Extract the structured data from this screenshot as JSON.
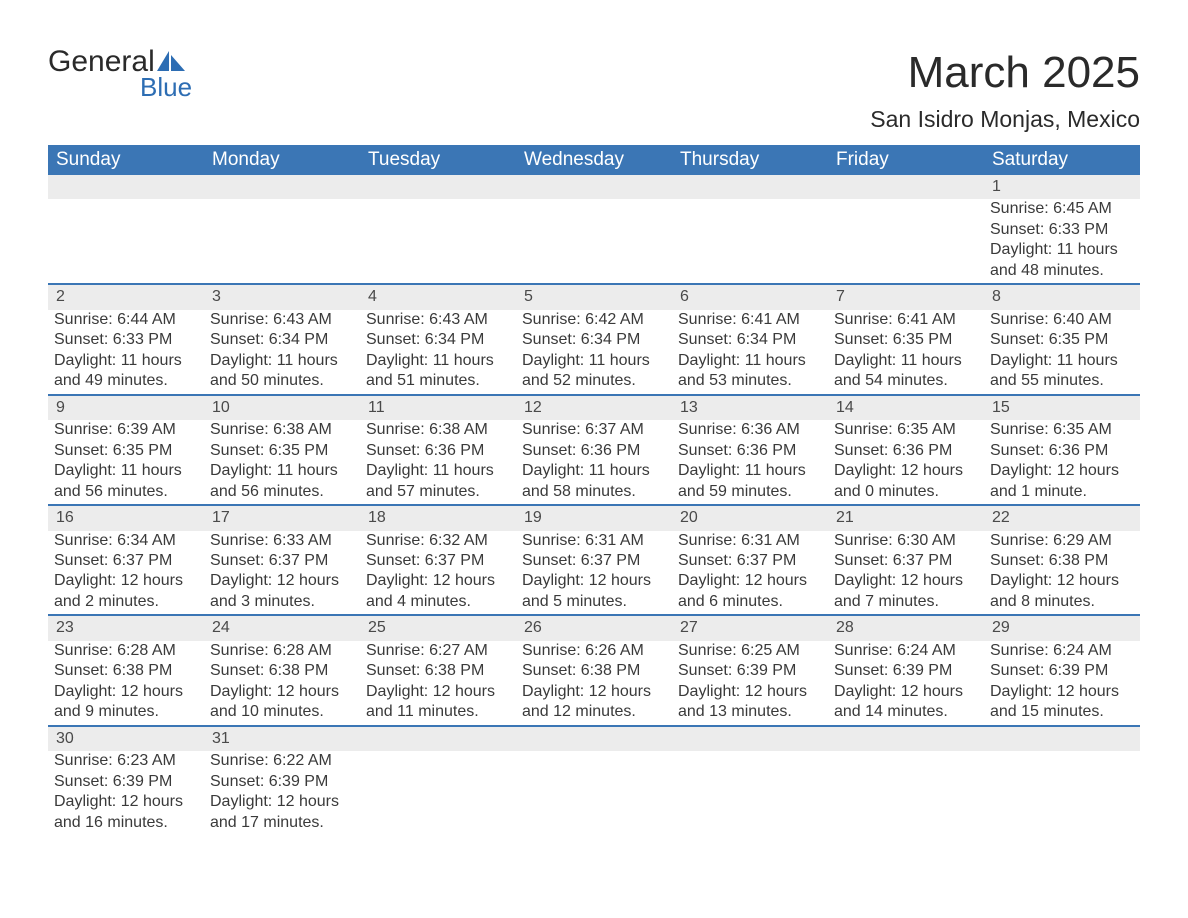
{
  "logo": {
    "general": "General",
    "blue": "Blue",
    "icon_color": "#2d6db3"
  },
  "title": "March 2025",
  "location": "San Isidro Monjas, Mexico",
  "columns": [
    "Sunday",
    "Monday",
    "Tuesday",
    "Wednesday",
    "Thursday",
    "Friday",
    "Saturday"
  ],
  "header_bg": "#3b76b5",
  "header_fg": "#ffffff",
  "strip_bg": "#ececec",
  "divider_color": "#3b76b5",
  "text_color": "#3a3a3a",
  "font_family": "Arial, Helvetica, sans-serif",
  "month_title_fontsize": 44,
  "location_fontsize": 23,
  "header_fontsize": 19,
  "body_fontsize": 16,
  "weeks": [
    {
      "days": [
        null,
        null,
        null,
        null,
        null,
        null,
        {
          "n": "1",
          "sunrise": "Sunrise: 6:45 AM",
          "sunset": "Sunset: 6:33 PM",
          "d1": "Daylight: 11 hours",
          "d2": "and 48 minutes."
        }
      ]
    },
    {
      "days": [
        {
          "n": "2",
          "sunrise": "Sunrise: 6:44 AM",
          "sunset": "Sunset: 6:33 PM",
          "d1": "Daylight: 11 hours",
          "d2": "and 49 minutes."
        },
        {
          "n": "3",
          "sunrise": "Sunrise: 6:43 AM",
          "sunset": "Sunset: 6:34 PM",
          "d1": "Daylight: 11 hours",
          "d2": "and 50 minutes."
        },
        {
          "n": "4",
          "sunrise": "Sunrise: 6:43 AM",
          "sunset": "Sunset: 6:34 PM",
          "d1": "Daylight: 11 hours",
          "d2": "and 51 minutes."
        },
        {
          "n": "5",
          "sunrise": "Sunrise: 6:42 AM",
          "sunset": "Sunset: 6:34 PM",
          "d1": "Daylight: 11 hours",
          "d2": "and 52 minutes."
        },
        {
          "n": "6",
          "sunrise": "Sunrise: 6:41 AM",
          "sunset": "Sunset: 6:34 PM",
          "d1": "Daylight: 11 hours",
          "d2": "and 53 minutes."
        },
        {
          "n": "7",
          "sunrise": "Sunrise: 6:41 AM",
          "sunset": "Sunset: 6:35 PM",
          "d1": "Daylight: 11 hours",
          "d2": "and 54 minutes."
        },
        {
          "n": "8",
          "sunrise": "Sunrise: 6:40 AM",
          "sunset": "Sunset: 6:35 PM",
          "d1": "Daylight: 11 hours",
          "d2": "and 55 minutes."
        }
      ]
    },
    {
      "days": [
        {
          "n": "9",
          "sunrise": "Sunrise: 6:39 AM",
          "sunset": "Sunset: 6:35 PM",
          "d1": "Daylight: 11 hours",
          "d2": "and 56 minutes."
        },
        {
          "n": "10",
          "sunrise": "Sunrise: 6:38 AM",
          "sunset": "Sunset: 6:35 PM",
          "d1": "Daylight: 11 hours",
          "d2": "and 56 minutes."
        },
        {
          "n": "11",
          "sunrise": "Sunrise: 6:38 AM",
          "sunset": "Sunset: 6:36 PM",
          "d1": "Daylight: 11 hours",
          "d2": "and 57 minutes."
        },
        {
          "n": "12",
          "sunrise": "Sunrise: 6:37 AM",
          "sunset": "Sunset: 6:36 PM",
          "d1": "Daylight: 11 hours",
          "d2": "and 58 minutes."
        },
        {
          "n": "13",
          "sunrise": "Sunrise: 6:36 AM",
          "sunset": "Sunset: 6:36 PM",
          "d1": "Daylight: 11 hours",
          "d2": "and 59 minutes."
        },
        {
          "n": "14",
          "sunrise": "Sunrise: 6:35 AM",
          "sunset": "Sunset: 6:36 PM",
          "d1": "Daylight: 12 hours",
          "d2": "and 0 minutes."
        },
        {
          "n": "15",
          "sunrise": "Sunrise: 6:35 AM",
          "sunset": "Sunset: 6:36 PM",
          "d1": "Daylight: 12 hours",
          "d2": "and 1 minute."
        }
      ]
    },
    {
      "days": [
        {
          "n": "16",
          "sunrise": "Sunrise: 6:34 AM",
          "sunset": "Sunset: 6:37 PM",
          "d1": "Daylight: 12 hours",
          "d2": "and 2 minutes."
        },
        {
          "n": "17",
          "sunrise": "Sunrise: 6:33 AM",
          "sunset": "Sunset: 6:37 PM",
          "d1": "Daylight: 12 hours",
          "d2": "and 3 minutes."
        },
        {
          "n": "18",
          "sunrise": "Sunrise: 6:32 AM",
          "sunset": "Sunset: 6:37 PM",
          "d1": "Daylight: 12 hours",
          "d2": "and 4 minutes."
        },
        {
          "n": "19",
          "sunrise": "Sunrise: 6:31 AM",
          "sunset": "Sunset: 6:37 PM",
          "d1": "Daylight: 12 hours",
          "d2": "and 5 minutes."
        },
        {
          "n": "20",
          "sunrise": "Sunrise: 6:31 AM",
          "sunset": "Sunset: 6:37 PM",
          "d1": "Daylight: 12 hours",
          "d2": "and 6 minutes."
        },
        {
          "n": "21",
          "sunrise": "Sunrise: 6:30 AM",
          "sunset": "Sunset: 6:37 PM",
          "d1": "Daylight: 12 hours",
          "d2": "and 7 minutes."
        },
        {
          "n": "22",
          "sunrise": "Sunrise: 6:29 AM",
          "sunset": "Sunset: 6:38 PM",
          "d1": "Daylight: 12 hours",
          "d2": "and 8 minutes."
        }
      ]
    },
    {
      "days": [
        {
          "n": "23",
          "sunrise": "Sunrise: 6:28 AM",
          "sunset": "Sunset: 6:38 PM",
          "d1": "Daylight: 12 hours",
          "d2": "and 9 minutes."
        },
        {
          "n": "24",
          "sunrise": "Sunrise: 6:28 AM",
          "sunset": "Sunset: 6:38 PM",
          "d1": "Daylight: 12 hours",
          "d2": "and 10 minutes."
        },
        {
          "n": "25",
          "sunrise": "Sunrise: 6:27 AM",
          "sunset": "Sunset: 6:38 PM",
          "d1": "Daylight: 12 hours",
          "d2": "and 11 minutes."
        },
        {
          "n": "26",
          "sunrise": "Sunrise: 6:26 AM",
          "sunset": "Sunset: 6:38 PM",
          "d1": "Daylight: 12 hours",
          "d2": "and 12 minutes."
        },
        {
          "n": "27",
          "sunrise": "Sunrise: 6:25 AM",
          "sunset": "Sunset: 6:39 PM",
          "d1": "Daylight: 12 hours",
          "d2": "and 13 minutes."
        },
        {
          "n": "28",
          "sunrise": "Sunrise: 6:24 AM",
          "sunset": "Sunset: 6:39 PM",
          "d1": "Daylight: 12 hours",
          "d2": "and 14 minutes."
        },
        {
          "n": "29",
          "sunrise": "Sunrise: 6:24 AM",
          "sunset": "Sunset: 6:39 PM",
          "d1": "Daylight: 12 hours",
          "d2": "and 15 minutes."
        }
      ]
    },
    {
      "days": [
        {
          "n": "30",
          "sunrise": "Sunrise: 6:23 AM",
          "sunset": "Sunset: 6:39 PM",
          "d1": "Daylight: 12 hours",
          "d2": "and 16 minutes."
        },
        {
          "n": "31",
          "sunrise": "Sunrise: 6:22 AM",
          "sunset": "Sunset: 6:39 PM",
          "d1": "Daylight: 12 hours",
          "d2": "and 17 minutes."
        },
        null,
        null,
        null,
        null,
        null
      ]
    }
  ]
}
